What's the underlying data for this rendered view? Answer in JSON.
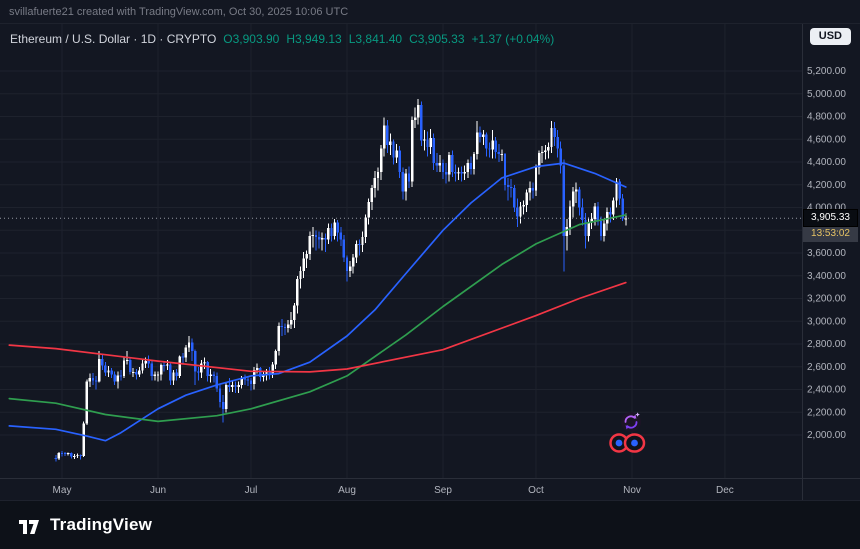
{
  "header": {
    "text": "svillafuerte21 created with TradingView.com, Oct 30, 2025 10:06 UTC"
  },
  "legend": {
    "title": "Ethereum / U.S. Dollar · 1D · CRYPTO",
    "open": "O3,903.90",
    "high": "H3,949.13",
    "low": "L3,841.40",
    "close": "C3,905.33",
    "change": "+1.37 (+0.04%)"
  },
  "currency_button": {
    "label": "USD"
  },
  "badge": {
    "price": "3,905.33",
    "countdown": "13:53:02"
  },
  "footer": {
    "brand": "TradingView"
  },
  "chart_data": {
    "type": "candlestick",
    "title": "Ethereum / U.S. Dollar",
    "interval": "1D",
    "market": "CRYPTO",
    "price_line": {
      "value": 3905.33,
      "label": "3,905.33",
      "countdown": "13:53:02"
    },
    "style": {
      "background": "#131722",
      "grid": "#1e222d",
      "text": "#b2b5be",
      "up": "#ffffff",
      "down": "#2962ff",
      "price_line": "#9598a1"
    },
    "y_axis": {
      "ticks": [
        {
          "value": 5200,
          "label": "5,200.00"
        },
        {
          "value": 5000,
          "label": "5,000.00"
        },
        {
          "value": 4800,
          "label": "4,800.00"
        },
        {
          "value": 4600,
          "label": "4,600.00"
        },
        {
          "value": 4400,
          "label": "4,400.00"
        },
        {
          "value": 4200,
          "label": "4,200.00"
        },
        {
          "value": 4000,
          "label": "4,000.00"
        },
        {
          "value": 3800,
          "label": "3,800.00"
        },
        {
          "value": 3600,
          "label": "3,600.00"
        },
        {
          "value": 3400,
          "label": "3,400.00"
        },
        {
          "value": 3200,
          "label": "3,200.00"
        },
        {
          "value": 3000,
          "label": "3,000.00"
        },
        {
          "value": 2800,
          "label": "2,800.00"
        },
        {
          "value": 2600,
          "label": "2,600.00"
        },
        {
          "value": 2400,
          "label": "2,400.00"
        },
        {
          "value": 2200,
          "label": "2,200.00"
        },
        {
          "value": 2000,
          "label": "2,000.00"
        }
      ]
    },
    "x_axis": {
      "months": [
        {
          "label": "May",
          "index": 2
        },
        {
          "label": "Jun",
          "index": 33
        },
        {
          "label": "Jul",
          "index": 63
        },
        {
          "label": "Aug",
          "index": 94
        },
        {
          "label": "Sep",
          "index": 125
        },
        {
          "label": "Oct",
          "index": 155
        },
        {
          "label": "Nov",
          "index": 186
        },
        {
          "label": "Dec",
          "index": 216
        }
      ]
    },
    "candles": [
      [
        1800,
        1825,
        1765,
        1795
      ],
      [
        1795,
        1850,
        1780,
        1843
      ],
      [
        1843,
        1860,
        1810,
        1840
      ],
      [
        1840,
        1852,
        1815,
        1835
      ],
      [
        1835,
        1848,
        1820,
        1841
      ],
      [
        1841,
        1846,
        1795,
        1812
      ],
      [
        1812,
        1832,
        1790,
        1816
      ],
      [
        1816,
        1838,
        1800,
        1822
      ],
      [
        1822,
        1830,
        1785,
        1815
      ],
      [
        1815,
        2120,
        1805,
        2100
      ],
      [
        2100,
        2490,
        2090,
        2470
      ],
      [
        2470,
        2540,
        2420,
        2500
      ],
      [
        2500,
        2545,
        2440,
        2480
      ],
      [
        2480,
        2520,
        2400,
        2470
      ],
      [
        2470,
        2740,
        2460,
        2670
      ],
      [
        2670,
        2710,
        2570,
        2610
      ],
      [
        2610,
        2640,
        2520,
        2550
      ],
      [
        2550,
        2605,
        2510,
        2565
      ],
      [
        2565,
        2590,
        2500,
        2530
      ],
      [
        2530,
        2560,
        2440,
        2470
      ],
      [
        2470,
        2560,
        2410,
        2525
      ],
      [
        2525,
        2570,
        2480,
        2520
      ],
      [
        2520,
        2680,
        2500,
        2655
      ],
      [
        2655,
        2740,
        2620,
        2660
      ],
      [
        2660,
        2680,
        2530,
        2555
      ],
      [
        2555,
        2590,
        2510,
        2555
      ],
      [
        2555,
        2580,
        2490,
        2530
      ],
      [
        2530,
        2600,
        2510,
        2565
      ],
      [
        2565,
        2660,
        2540,
        2630
      ],
      [
        2630,
        2680,
        2590,
        2650
      ],
      [
        2650,
        2700,
        2590,
        2630
      ],
      [
        2630,
        2650,
        2480,
        2520
      ],
      [
        2520,
        2560,
        2480,
        2530
      ],
      [
        2530,
        2560,
        2470,
        2530
      ],
      [
        2530,
        2630,
        2480,
        2615
      ],
      [
        2615,
        2650,
        2560,
        2610
      ],
      [
        2610,
        2660,
        2570,
        2620
      ],
      [
        2620,
        2630,
        2440,
        2480
      ],
      [
        2480,
        2570,
        2440,
        2550
      ],
      [
        2550,
        2580,
        2480,
        2520
      ],
      [
        2520,
        2700,
        2500,
        2690
      ],
      [
        2690,
        2720,
        2620,
        2680
      ],
      [
        2680,
        2790,
        2640,
        2770
      ],
      [
        2770,
        2870,
        2730,
        2815
      ],
      [
        2815,
        2850,
        2650,
        2740
      ],
      [
        2740,
        2750,
        2440,
        2560
      ],
      [
        2560,
        2600,
        2480,
        2550
      ],
      [
        2550,
        2660,
        2500,
        2630
      ],
      [
        2630,
        2680,
        2580,
        2640
      ],
      [
        2640,
        2650,
        2470,
        2520
      ],
      [
        2520,
        2580,
        2460,
        2530
      ],
      [
        2530,
        2560,
        2460,
        2520
      ],
      [
        2520,
        2550,
        2380,
        2410
      ],
      [
        2410,
        2450,
        2240,
        2290
      ],
      [
        2290,
        2350,
        2110,
        2230
      ],
      [
        2230,
        2460,
        2200,
        2440
      ],
      [
        2440,
        2500,
        2380,
        2420
      ],
      [
        2420,
        2480,
        2380,
        2440
      ],
      [
        2440,
        2470,
        2370,
        2420
      ],
      [
        2420,
        2470,
        2370,
        2440
      ],
      [
        2440,
        2520,
        2410,
        2500
      ],
      [
        2500,
        2530,
        2440,
        2490
      ],
      [
        2490,
        2520,
        2430,
        2480
      ],
      [
        2480,
        2500,
        2390,
        2450
      ],
      [
        2450,
        2600,
        2400,
        2570
      ],
      [
        2570,
        2630,
        2540,
        2590
      ],
      [
        2590,
        2600,
        2470,
        2510
      ],
      [
        2510,
        2560,
        2470,
        2530
      ],
      [
        2530,
        2580,
        2480,
        2560
      ],
      [
        2560,
        2600,
        2490,
        2540
      ],
      [
        2540,
        2640,
        2500,
        2620
      ],
      [
        2620,
        2750,
        2580,
        2740
      ],
      [
        2740,
        2990,
        2700,
        2960
      ],
      [
        2960,
        3020,
        2870,
        2950
      ],
      [
        2950,
        2980,
        2880,
        2940
      ],
      [
        2940,
        3010,
        2900,
        2970
      ],
      [
        2970,
        3080,
        2930,
        3010
      ],
      [
        3010,
        3160,
        2940,
        3140
      ],
      [
        3140,
        3400,
        3070,
        3370
      ],
      [
        3370,
        3480,
        3290,
        3440
      ],
      [
        3440,
        3610,
        3380,
        3550
      ],
      [
        3550,
        3620,
        3470,
        3590
      ],
      [
        3590,
        3790,
        3540,
        3750
      ],
      [
        3750,
        3830,
        3650,
        3760
      ],
      [
        3760,
        3800,
        3620,
        3740
      ],
      [
        3740,
        3790,
        3640,
        3720
      ],
      [
        3720,
        3780,
        3620,
        3730
      ],
      [
        3730,
        3770,
        3610,
        3720
      ],
      [
        3720,
        3860,
        3680,
        3820
      ],
      [
        3820,
        3860,
        3700,
        3750
      ],
      [
        3750,
        3900,
        3720,
        3870
      ],
      [
        3870,
        3890,
        3700,
        3780
      ],
      [
        3780,
        3830,
        3660,
        3720
      ],
      [
        3720,
        3760,
        3520,
        3560
      ],
      [
        3560,
        3580,
        3350,
        3440
      ],
      [
        3440,
        3530,
        3390,
        3480
      ],
      [
        3480,
        3590,
        3420,
        3560
      ],
      [
        3560,
        3710,
        3510,
        3680
      ],
      [
        3680,
        3720,
        3580,
        3670
      ],
      [
        3670,
        3790,
        3610,
        3740
      ],
      [
        3740,
        3940,
        3690,
        3910
      ],
      [
        3910,
        4080,
        3850,
        4050
      ],
      [
        4050,
        4200,
        3980,
        4170
      ],
      [
        4170,
        4320,
        4090,
        4260
      ],
      [
        4260,
        4350,
        4150,
        4310
      ],
      [
        4310,
        4550,
        4240,
        4520
      ],
      [
        4520,
        4790,
        4450,
        4720
      ],
      [
        4720,
        4770,
        4480,
        4550
      ],
      [
        4550,
        4650,
        4460,
        4580
      ],
      [
        4580,
        4600,
        4380,
        4440
      ],
      [
        4440,
        4560,
        4390,
        4500
      ],
      [
        4500,
        4540,
        4260,
        4310
      ],
      [
        4310,
        4350,
        4070,
        4140
      ],
      [
        4140,
        4340,
        4060,
        4300
      ],
      [
        4300,
        4360,
        4170,
        4230
      ],
      [
        4230,
        4800,
        4180,
        4770
      ],
      [
        4770,
        4880,
        4700,
        4790
      ],
      [
        4790,
        4956,
        4730,
        4900
      ],
      [
        4900,
        4930,
        4540,
        4590
      ],
      [
        4590,
        4680,
        4500,
        4600
      ],
      [
        4600,
        4670,
        4450,
        4530
      ],
      [
        4530,
        4690,
        4470,
        4610
      ],
      [
        4610,
        4650,
        4330,
        4390
      ],
      [
        4390,
        4480,
        4310,
        4370
      ],
      [
        4370,
        4460,
        4310,
        4390
      ],
      [
        4390,
        4420,
        4250,
        4310
      ],
      [
        4310,
        4390,
        4210,
        4290
      ],
      [
        4290,
        4490,
        4230,
        4460
      ],
      [
        4460,
        4500,
        4270,
        4310
      ],
      [
        4310,
        4380,
        4230,
        4300
      ],
      [
        4300,
        4350,
        4240,
        4310
      ],
      [
        4310,
        4360,
        4230,
        4300
      ],
      [
        4300,
        4370,
        4240,
        4310
      ],
      [
        4310,
        4420,
        4260,
        4390
      ],
      [
        4390,
        4450,
        4290,
        4340
      ],
      [
        4340,
        4490,
        4290,
        4470
      ],
      [
        4470,
        4760,
        4420,
        4660
      ],
      [
        4660,
        4710,
        4570,
        4620
      ],
      [
        4620,
        4680,
        4550,
        4640
      ],
      [
        4640,
        4660,
        4450,
        4520
      ],
      [
        4520,
        4570,
        4440,
        4510
      ],
      [
        4510,
        4680,
        4430,
        4590
      ],
      [
        4590,
        4620,
        4430,
        4490
      ],
      [
        4490,
        4560,
        4400,
        4470
      ],
      [
        4470,
        4510,
        4410,
        4470
      ],
      [
        4470,
        4480,
        4150,
        4200
      ],
      [
        4200,
        4260,
        4060,
        4180
      ],
      [
        4180,
        4250,
        4090,
        4170
      ],
      [
        4170,
        4200,
        3960,
        4000
      ],
      [
        4000,
        4080,
        3830,
        3920
      ],
      [
        3920,
        4050,
        3860,
        4010
      ],
      [
        4010,
        4060,
        3940,
        4020
      ],
      [
        4020,
        4160,
        3960,
        4130
      ],
      [
        4130,
        4230,
        4060,
        4170
      ],
      [
        4170,
        4220,
        4080,
        4150
      ],
      [
        4150,
        4380,
        4100,
        4350
      ],
      [
        4350,
        4500,
        4290,
        4480
      ],
      [
        4480,
        4540,
        4390,
        4490
      ],
      [
        4490,
        4550,
        4420,
        4500
      ],
      [
        4500,
        4570,
        4430,
        4530
      ],
      [
        4530,
        4760,
        4480,
        4700
      ],
      [
        4700,
        4750,
        4540,
        4620
      ],
      [
        4620,
        4680,
        4440,
        4520
      ],
      [
        4520,
        4580,
        4300,
        4370
      ],
      [
        4370,
        4420,
        3436,
        3750
      ],
      [
        3750,
        3900,
        3620,
        3830
      ],
      [
        3830,
        4060,
        3760,
        4010
      ],
      [
        4010,
        4180,
        3910,
        4140
      ],
      [
        4140,
        4220,
        4040,
        4160
      ],
      [
        4160,
        4180,
        3930,
        4000
      ],
      [
        4000,
        4080,
        3840,
        3890
      ],
      [
        3890,
        3950,
        3640,
        3750
      ],
      [
        3750,
        3910,
        3700,
        3870
      ],
      [
        3870,
        3950,
        3810,
        3900
      ],
      [
        3900,
        4040,
        3840,
        4010
      ],
      [
        4010,
        4050,
        3840,
        3880
      ],
      [
        3880,
        3920,
        3710,
        3750
      ],
      [
        3750,
        3890,
        3700,
        3860
      ],
      [
        3860,
        4000,
        3800,
        3960
      ],
      [
        3960,
        4000,
        3870,
        3940
      ],
      [
        3940,
        4090,
        3890,
        4060
      ],
      [
        4060,
        4260,
        4000,
        4230
      ],
      [
        4230,
        4250,
        4020,
        4080
      ],
      [
        4080,
        4120,
        3880,
        3904
      ],
      [
        3903.9,
        3949.13,
        3841.4,
        3905.33
      ]
    ],
    "ma_lines": [
      {
        "name": "ma-fast-blue",
        "color": "#2962ff",
        "points": [
          [
            -15,
            2080
          ],
          [
            0,
            2050
          ],
          [
            10,
            1990
          ],
          [
            16,
            1950
          ],
          [
            21,
            2020
          ],
          [
            33,
            2230
          ],
          [
            42,
            2350
          ],
          [
            52,
            2440
          ],
          [
            63,
            2520
          ],
          [
            72,
            2540
          ],
          [
            82,
            2640
          ],
          [
            94,
            2870
          ],
          [
            103,
            3100
          ],
          [
            113,
            3420
          ],
          [
            125,
            3800
          ],
          [
            134,
            4040
          ],
          [
            144,
            4260
          ],
          [
            155,
            4360
          ],
          [
            164,
            4390
          ],
          [
            174,
            4300
          ],
          [
            184,
            4180
          ]
        ]
      },
      {
        "name": "ma-mid-green",
        "color": "#2f9e4f",
        "points": [
          [
            -15,
            2320
          ],
          [
            0,
            2280
          ],
          [
            16,
            2180
          ],
          [
            33,
            2120
          ],
          [
            52,
            2170
          ],
          [
            63,
            2230
          ],
          [
            82,
            2380
          ],
          [
            94,
            2520
          ],
          [
            113,
            2880
          ],
          [
            125,
            3130
          ],
          [
            144,
            3500
          ],
          [
            155,
            3680
          ],
          [
            169,
            3850
          ],
          [
            184,
            3935
          ]
        ]
      },
      {
        "name": "ma-slow-red",
        "color": "#f23645",
        "points": [
          [
            -15,
            2790
          ],
          [
            0,
            2760
          ],
          [
            33,
            2650
          ],
          [
            63,
            2560
          ],
          [
            82,
            2555
          ],
          [
            94,
            2580
          ],
          [
            125,
            2750
          ],
          [
            155,
            3050
          ],
          [
            169,
            3200
          ],
          [
            184,
            3340
          ]
        ]
      }
    ]
  }
}
